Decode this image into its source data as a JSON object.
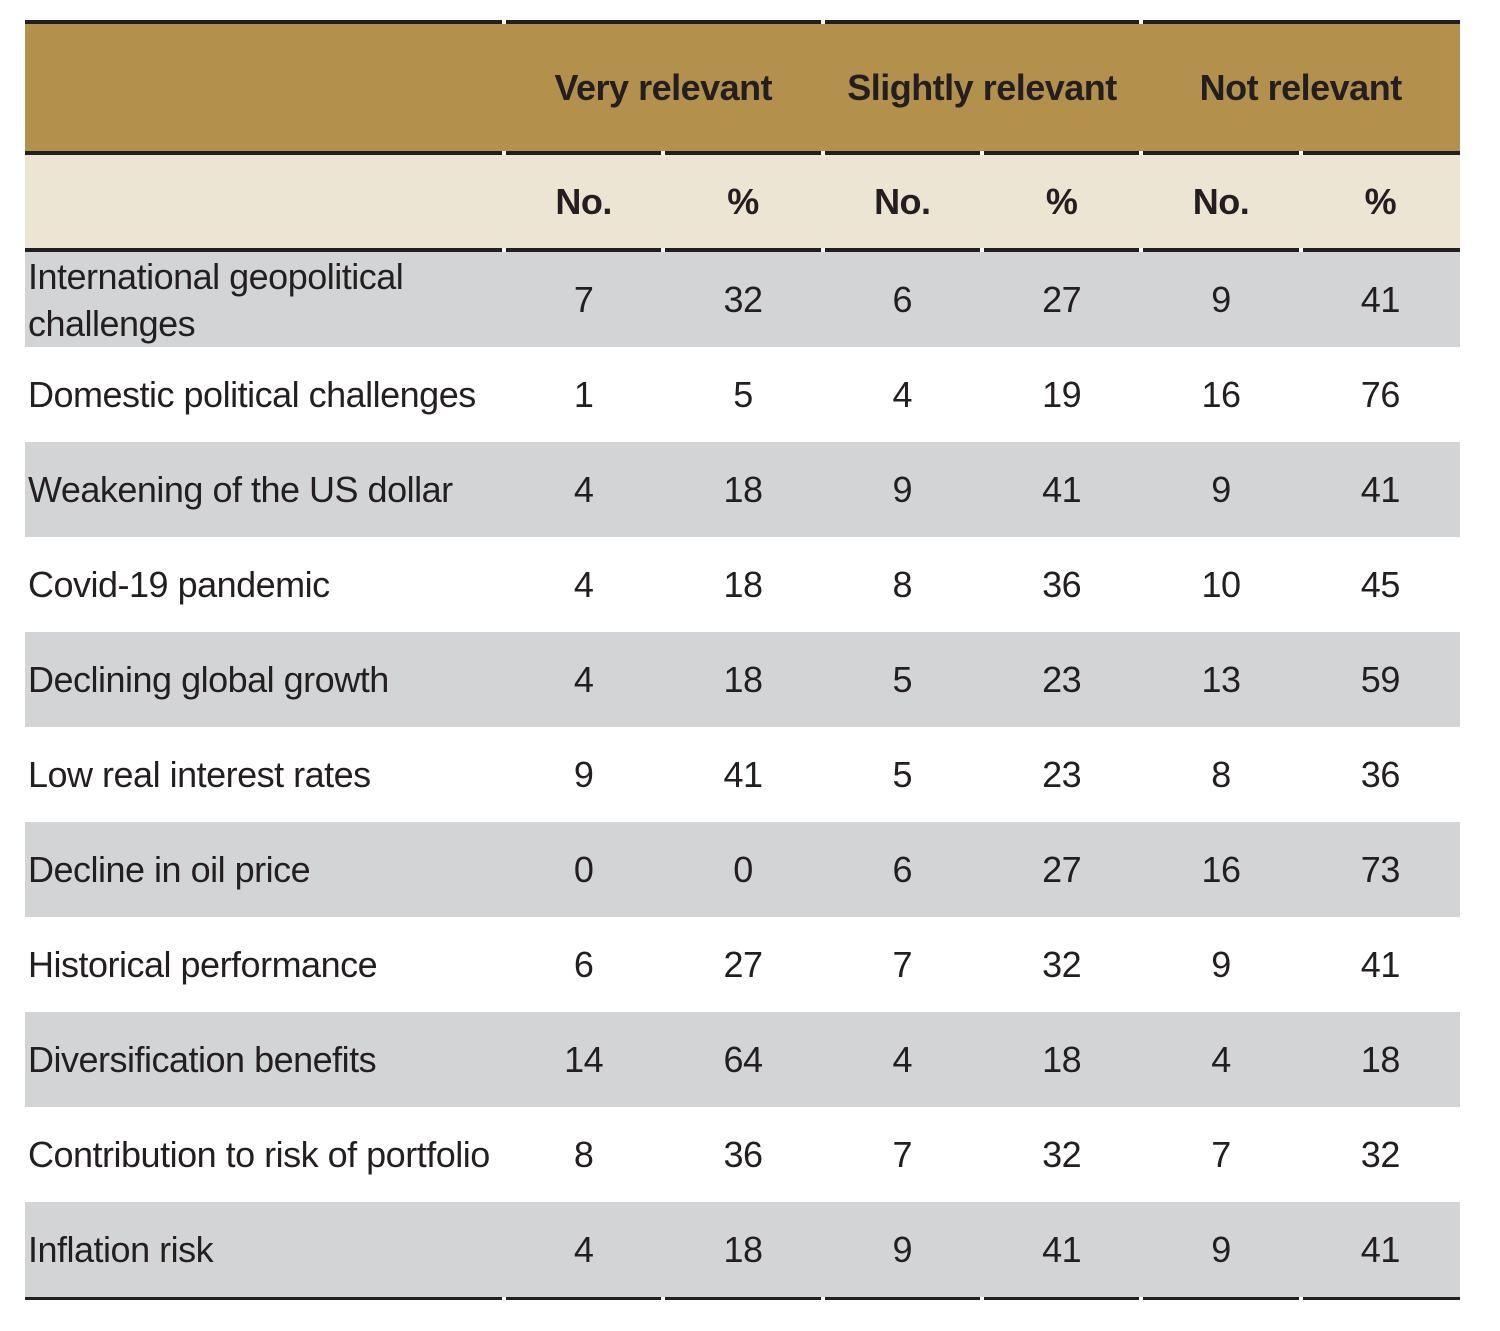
{
  "table": {
    "column_groups": [
      {
        "label": "Very relevant"
      },
      {
        "label": "Slightly relevant"
      },
      {
        "label": "Not relevant"
      }
    ],
    "sub_headers": [
      "No.",
      "%",
      "No.",
      "%",
      "No.",
      "%"
    ],
    "rows": [
      {
        "label": "International geopolitical challenges",
        "values": [
          7,
          32,
          6,
          27,
          9,
          41
        ]
      },
      {
        "label": "Domestic political challenges",
        "values": [
          1,
          5,
          4,
          19,
          16,
          76
        ]
      },
      {
        "label": "Weakening of the US dollar",
        "values": [
          4,
          18,
          9,
          41,
          9,
          41
        ]
      },
      {
        "label": "Covid-19 pandemic",
        "values": [
          4,
          18,
          8,
          36,
          10,
          45
        ]
      },
      {
        "label": "Declining global growth",
        "values": [
          4,
          18,
          5,
          23,
          13,
          59
        ]
      },
      {
        "label": "Low real interest rates",
        "values": [
          9,
          41,
          5,
          23,
          8,
          36
        ]
      },
      {
        "label": "Decline in oil price",
        "values": [
          0,
          0,
          6,
          27,
          16,
          73
        ]
      },
      {
        "label": "Historical performance",
        "values": [
          6,
          27,
          7,
          32,
          9,
          41
        ]
      },
      {
        "label": "Diversification benefits",
        "values": [
          14,
          64,
          4,
          18,
          4,
          18
        ]
      },
      {
        "label": "Contribution to risk of portfolio",
        "values": [
          8,
          36,
          7,
          32,
          7,
          32
        ]
      },
      {
        "label": "Inflation risk",
        "values": [
          4,
          18,
          9,
          41,
          9,
          41
        ]
      }
    ]
  },
  "colors": {
    "header_gold": "#b3914d",
    "subheader_cream": "#ece5d3",
    "row_stripe_gray": "#d3d4d6",
    "row_white": "#ffffff",
    "rule_black": "#231f20",
    "text": "#231f20"
  }
}
